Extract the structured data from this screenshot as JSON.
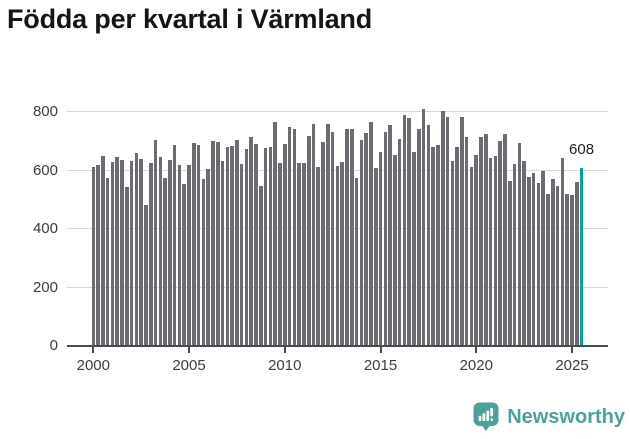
{
  "title": "Födda per kvartal i Värmland",
  "chart_data": {
    "type": "bar",
    "title": "Födda per kvartal i Värmland",
    "xlabel": "",
    "ylabel": "",
    "period_start": "2000 Q1",
    "period_end": "2025 Q3",
    "frequency": "quarterly",
    "y_ticks": [
      0,
      200,
      400,
      600,
      800
    ],
    "ylim": [
      0,
      800
    ],
    "grid": true,
    "legend_position": "none",
    "x_tick_labels": [
      "2000",
      "2005",
      "2010",
      "2015",
      "2020",
      "2025"
    ],
    "x_tick_indices": [
      0,
      20,
      40,
      60,
      80,
      100
    ],
    "values": [
      613,
      619,
      651,
      574,
      628,
      645,
      636,
      542,
      634,
      659,
      639,
      483,
      624,
      704,
      645,
      574,
      636,
      688,
      619,
      554,
      619,
      693,
      688,
      571,
      605,
      700,
      696,
      631,
      679,
      685,
      705,
      622,
      673,
      713,
      690,
      546,
      676,
      681,
      765,
      625,
      690,
      750,
      742,
      625,
      625,
      717,
      759,
      613,
      696,
      759,
      730,
      617,
      628,
      742,
      742,
      574,
      704,
      727,
      765,
      608,
      664,
      733,
      757,
      654,
      708,
      790,
      778,
      662,
      742,
      810,
      755,
      679,
      688,
      805,
      784,
      631,
      679,
      782,
      716,
      613,
      654,
      713,
      725,
      643,
      651,
      700,
      725,
      563,
      622,
      693,
      634,
      577,
      591,
      557,
      599,
      520,
      571,
      548,
      643,
      520,
      516,
      560,
      608
    ],
    "highlight_index": 102,
    "highlight_value": 608,
    "highlight_value_label": "608",
    "bar_color": "#6B6B71",
    "highlight_color": "#0B9E94",
    "gridline_color": "#d9d9d9",
    "axis_color": "#4b4b4b",
    "tick_label_color": "#3d3d3d"
  },
  "footer": {
    "brand": "Newsworthy",
    "logo_color": "#4CA29B",
    "logo_glyph_color": "#ffffff"
  }
}
